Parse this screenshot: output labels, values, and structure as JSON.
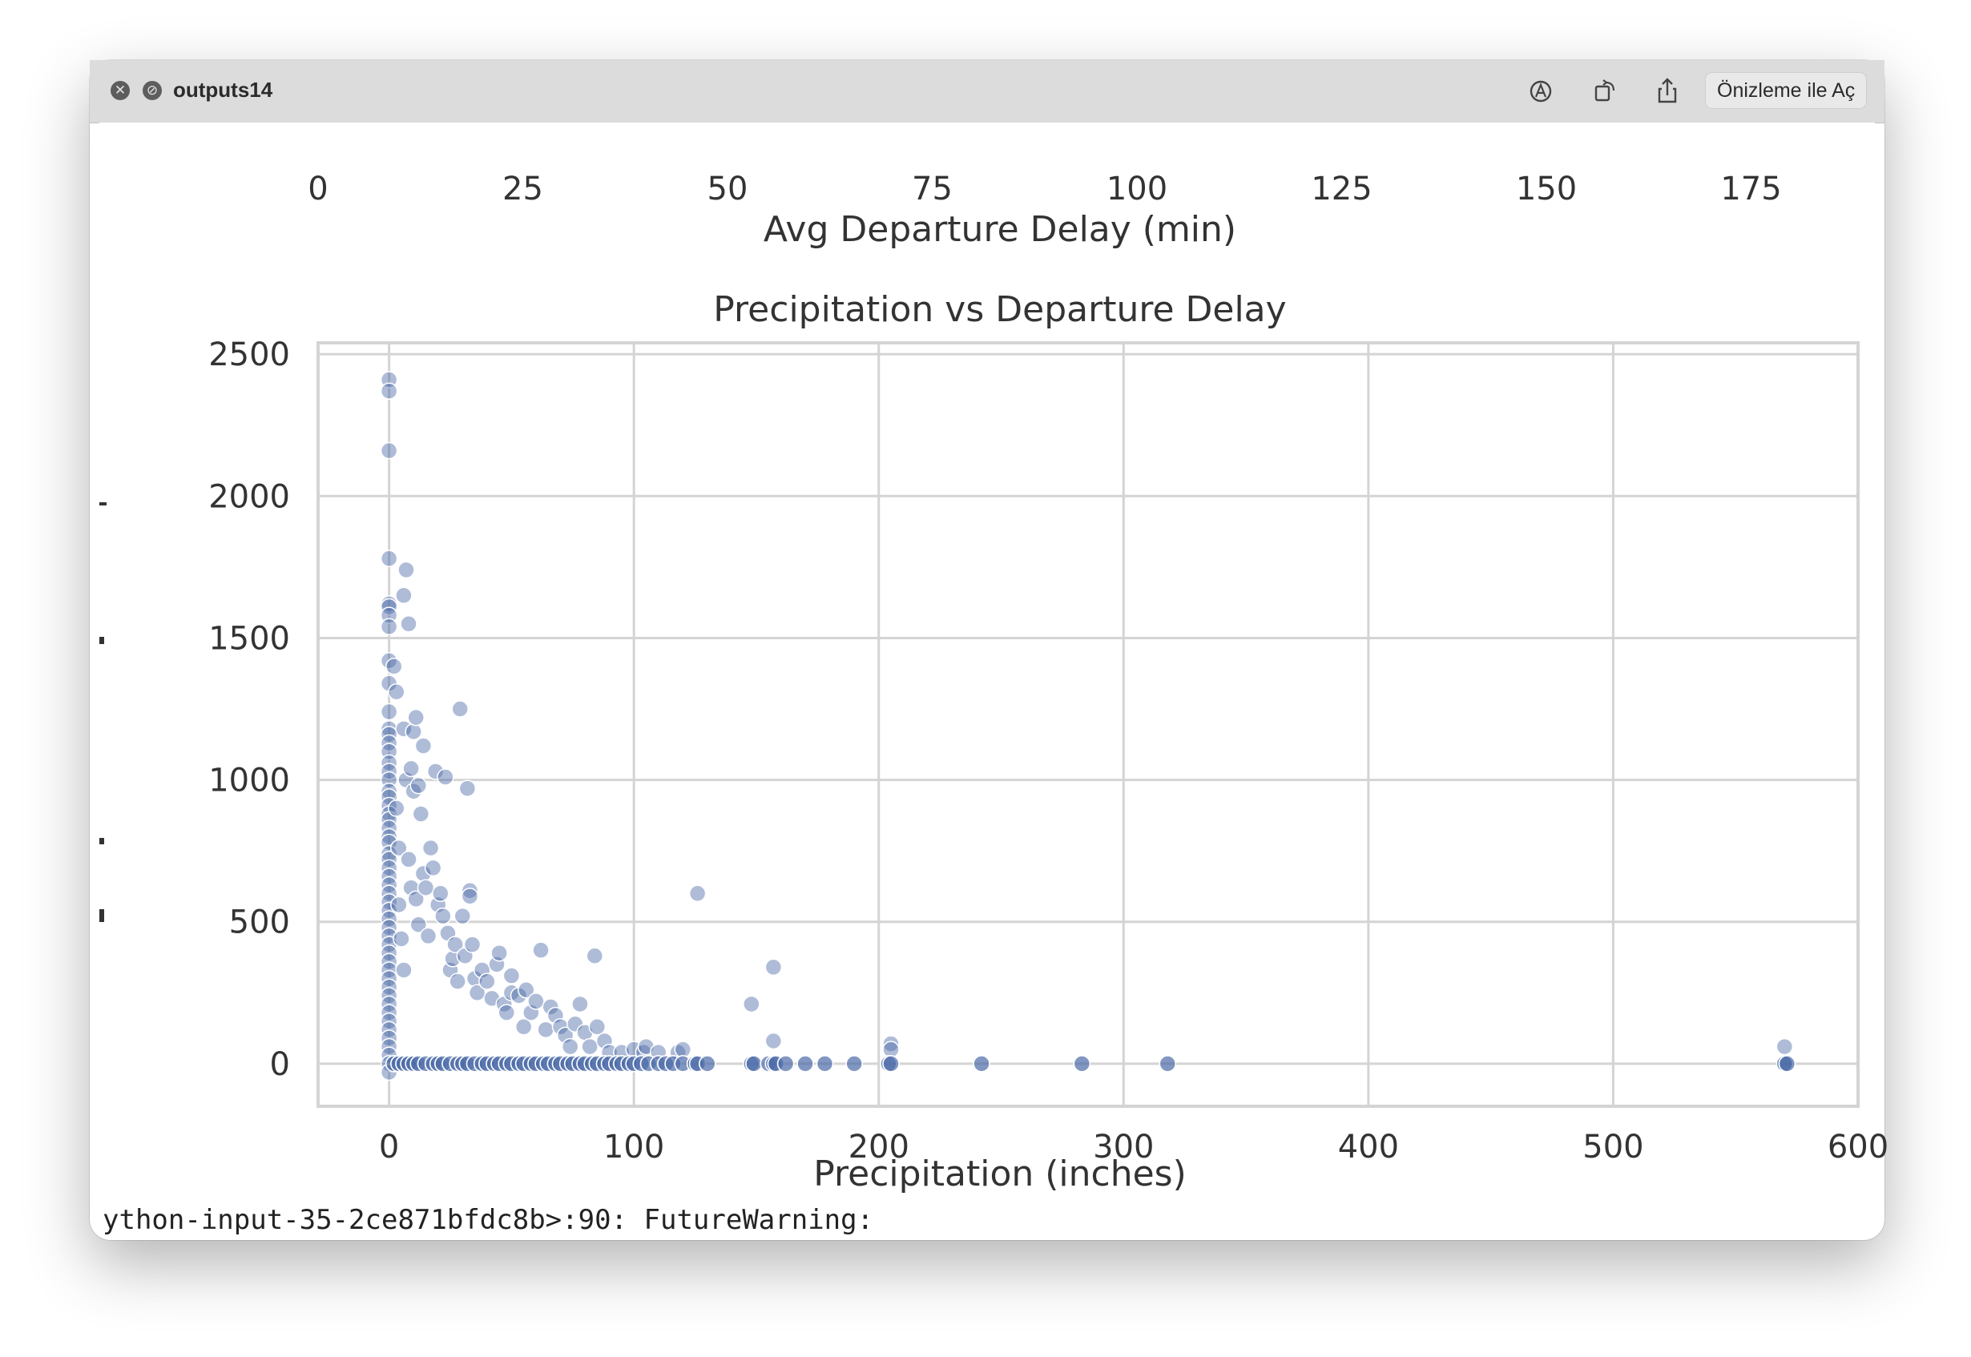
{
  "window": {
    "title": "outputs14",
    "open_with_label": "Önizleme ile Aç",
    "icons": [
      "close-icon",
      "fullscreen-disabled-icon",
      "markup-icon",
      "rotate-icon",
      "share-icon"
    ]
  },
  "top_partial_chart": {
    "xlabel": "Avg Departure Delay (min)",
    "ticks": [
      "0",
      "25",
      "50",
      "75",
      "100",
      "125",
      "150",
      "175"
    ]
  },
  "chart_data": {
    "type": "scatter",
    "title": "Precipitation vs Departure Delay",
    "xlabel": "Precipitation (inches)",
    "ylabel": "",
    "xlim": [
      -29,
      600
    ],
    "ylim": [
      -150,
      2540
    ],
    "xticks": [
      0,
      100,
      200,
      300,
      400,
      500,
      600
    ],
    "yticks": [
      0,
      500,
      1000,
      1500,
      2000,
      2500
    ],
    "grid": true,
    "color": "#4c6aa8",
    "points": [
      [
        0,
        2410
      ],
      [
        0,
        2370
      ],
      [
        0,
        2160
      ],
      [
        0,
        1780
      ],
      [
        0,
        1620
      ],
      [
        0,
        1610
      ],
      [
        0,
        1580
      ],
      [
        0,
        1540
      ],
      [
        0,
        1420
      ],
      [
        0,
        1340
      ],
      [
        0,
        1240
      ],
      [
        0,
        1180
      ],
      [
        0,
        1160
      ],
      [
        0,
        1130
      ],
      [
        0,
        1100
      ],
      [
        0,
        1060
      ],
      [
        0,
        1030
      ],
      [
        0,
        1000
      ],
      [
        0,
        960
      ],
      [
        0,
        940
      ],
      [
        0,
        910
      ],
      [
        0,
        880
      ],
      [
        0,
        860
      ],
      [
        0,
        830
      ],
      [
        0,
        800
      ],
      [
        0,
        780
      ],
      [
        0,
        740
      ],
      [
        0,
        720
      ],
      [
        0,
        690
      ],
      [
        0,
        660
      ],
      [
        0,
        630
      ],
      [
        0,
        600
      ],
      [
        0,
        570
      ],
      [
        0,
        540
      ],
      [
        0,
        510
      ],
      [
        0,
        480
      ],
      [
        0,
        450
      ],
      [
        0,
        420
      ],
      [
        0,
        390
      ],
      [
        0,
        360
      ],
      [
        0,
        330
      ],
      [
        0,
        300
      ],
      [
        0,
        270
      ],
      [
        0,
        240
      ],
      [
        0,
        210
      ],
      [
        0,
        180
      ],
      [
        0,
        150
      ],
      [
        0,
        120
      ],
      [
        0,
        90
      ],
      [
        0,
        60
      ],
      [
        0,
        30
      ],
      [
        0,
        0
      ],
      [
        0,
        -30
      ],
      [
        2,
        1400
      ],
      [
        3,
        1310
      ],
      [
        3,
        900
      ],
      [
        4,
        760
      ],
      [
        4,
        560
      ],
      [
        5,
        440
      ],
      [
        6,
        1650
      ],
      [
        6,
        1180
      ],
      [
        6,
        330
      ],
      [
        7,
        1740
      ],
      [
        7,
        1000
      ],
      [
        8,
        1550
      ],
      [
        8,
        720
      ],
      [
        9,
        620
      ],
      [
        9,
        1040
      ],
      [
        10,
        1170
      ],
      [
        10,
        960
      ],
      [
        11,
        1220
      ],
      [
        11,
        580
      ],
      [
        12,
        980
      ],
      [
        12,
        490
      ],
      [
        13,
        880
      ],
      [
        14,
        1120
      ],
      [
        14,
        670
      ],
      [
        15,
        620
      ],
      [
        16,
        450
      ],
      [
        17,
        760
      ],
      [
        18,
        690
      ],
      [
        19,
        1030
      ],
      [
        20,
        560
      ],
      [
        21,
        600
      ],
      [
        22,
        520
      ],
      [
        23,
        1010
      ],
      [
        24,
        460
      ],
      [
        25,
        330
      ],
      [
        26,
        370
      ],
      [
        27,
        420
      ],
      [
        28,
        290
      ],
      [
        29,
        1250
      ],
      [
        30,
        520
      ],
      [
        31,
        380
      ],
      [
        32,
        970
      ],
      [
        33,
        610
      ],
      [
        33,
        590
      ],
      [
        34,
        420
      ],
      [
        35,
        300
      ],
      [
        36,
        250
      ],
      [
        38,
        330
      ],
      [
        40,
        290
      ],
      [
        42,
        230
      ],
      [
        44,
        350
      ],
      [
        45,
        390
      ],
      [
        47,
        210
      ],
      [
        48,
        180
      ],
      [
        50,
        250
      ],
      [
        50,
        310
      ],
      [
        53,
        240
      ],
      [
        55,
        130
      ],
      [
        56,
        260
      ],
      [
        58,
        180
      ],
      [
        60,
        220
      ],
      [
        62,
        400
      ],
      [
        64,
        120
      ],
      [
        66,
        200
      ],
      [
        68,
        170
      ],
      [
        70,
        130
      ],
      [
        72,
        100
      ],
      [
        74,
        60
      ],
      [
        76,
        140
      ],
      [
        78,
        210
      ],
      [
        80,
        110
      ],
      [
        82,
        60
      ],
      [
        84,
        380
      ],
      [
        85,
        130
      ],
      [
        88,
        80
      ],
      [
        90,
        40
      ],
      [
        95,
        40
      ],
      [
        100,
        50
      ],
      [
        104,
        40
      ],
      [
        105,
        60
      ],
      [
        110,
        40
      ],
      [
        118,
        40
      ],
      [
        120,
        50
      ],
      [
        126,
        600
      ],
      [
        148,
        210
      ],
      [
        157,
        340
      ],
      [
        157,
        80
      ],
      [
        205,
        70
      ],
      [
        205,
        50
      ],
      [
        570,
        60
      ],
      [
        570,
        0
      ]
    ],
    "baseline_x": [
      2,
      4,
      6,
      8,
      10,
      12,
      15,
      18,
      20,
      22,
      25,
      28,
      30,
      32,
      35,
      38,
      40,
      43,
      45,
      48,
      50,
      53,
      55,
      58,
      60,
      63,
      65,
      68,
      70,
      73,
      75,
      78,
      80,
      83,
      85,
      88,
      90,
      93,
      95,
      98,
      100,
      103,
      106,
      110,
      113,
      116,
      120,
      125,
      126,
      130,
      148,
      149,
      155,
      157,
      158,
      162,
      170,
      178,
      190,
      204,
      205,
      242,
      283,
      318,
      570,
      571
    ]
  },
  "footer": {
    "warning_text": "ython-input-35-2ce871bfdc8b>:90: FutureWarning:"
  }
}
